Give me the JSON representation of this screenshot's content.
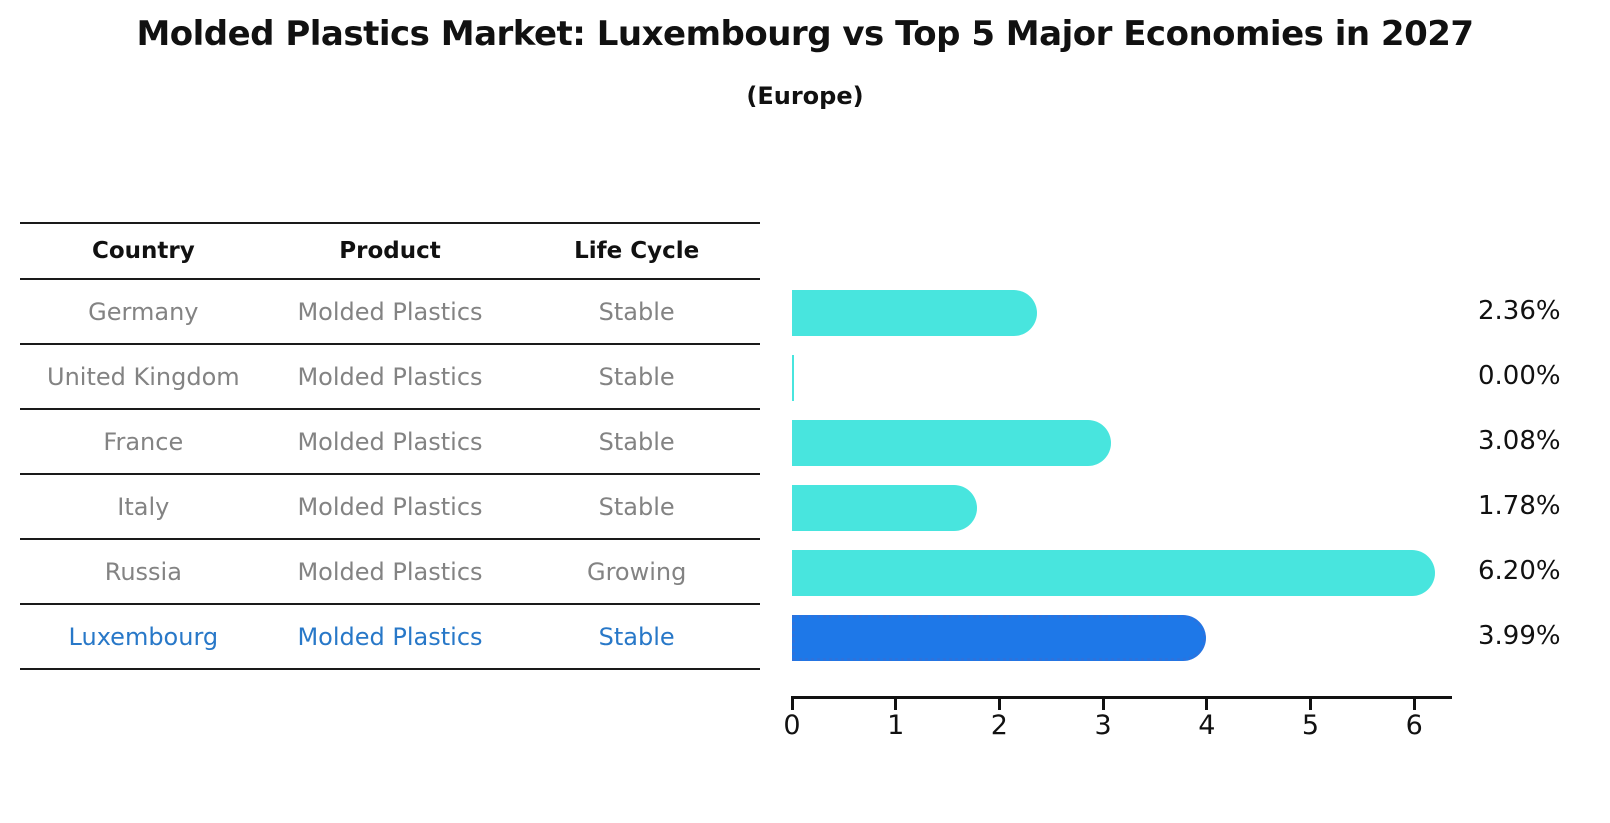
{
  "title": "Molded Plastics Market: Luxembourg vs Top 5 Major Economies in 2027",
  "subtitle": "(Europe)",
  "table": {
    "headers": [
      "Country",
      "Product",
      "Life Cycle"
    ],
    "rows": [
      {
        "country": "Germany",
        "product": "Molded Plastics",
        "life_cycle": "Stable",
        "value": 2.36,
        "value_label": "2.36%",
        "highlight": false
      },
      {
        "country": "United Kingdom",
        "product": "Molded Plastics",
        "life_cycle": "Stable",
        "value": 0.0,
        "value_label": "0.00%",
        "highlight": false
      },
      {
        "country": "France",
        "product": "Molded Plastics",
        "life_cycle": "Stable",
        "value": 3.08,
        "value_label": "3.08%",
        "highlight": false
      },
      {
        "country": "Italy",
        "product": "Molded Plastics",
        "life_cycle": "Stable",
        "value": 1.78,
        "value_label": "1.78%",
        "highlight": false
      },
      {
        "country": "Russia",
        "product": "Molded Plastics",
        "life_cycle": "Growing",
        "value": 6.2,
        "value_label": "6.20%",
        "highlight": false
      },
      {
        "country": "Luxembourg",
        "product": "Molded Plastics",
        "life_cycle": "Stable",
        "value": 3.99,
        "value_label": "3.99%",
        "highlight": true
      }
    ]
  },
  "chart_data": {
    "type": "bar",
    "orientation": "horizontal",
    "title": "Molded Plastics Market: Luxembourg vs Top 5 Major Economies in 2027",
    "subtitle": "(Europe)",
    "categories": [
      "Germany",
      "United Kingdom",
      "France",
      "Italy",
      "Russia",
      "Luxembourg"
    ],
    "values": [
      2.36,
      0.0,
      3.08,
      1.78,
      6.2,
      3.99
    ],
    "value_labels": [
      "2.36%",
      "0.00%",
      "3.08%",
      "1.78%",
      "6.20%",
      "3.99%"
    ],
    "xlabel": "",
    "ylabel": "",
    "xlim": [
      0,
      6.37
    ],
    "x_ticks": [
      0,
      1,
      2,
      3,
      4,
      5,
      6
    ],
    "grid": false,
    "legend": false,
    "highlight_category": "Luxembourg"
  },
  "colors": {
    "bar_default": "#48E5DE",
    "bar_highlight": "#1E78E8",
    "bar_highlight_border": "#2C72DD",
    "highlight_text": "#2878C8",
    "row_text": "#838383",
    "header_text": "#111111",
    "axis": "#111111"
  }
}
